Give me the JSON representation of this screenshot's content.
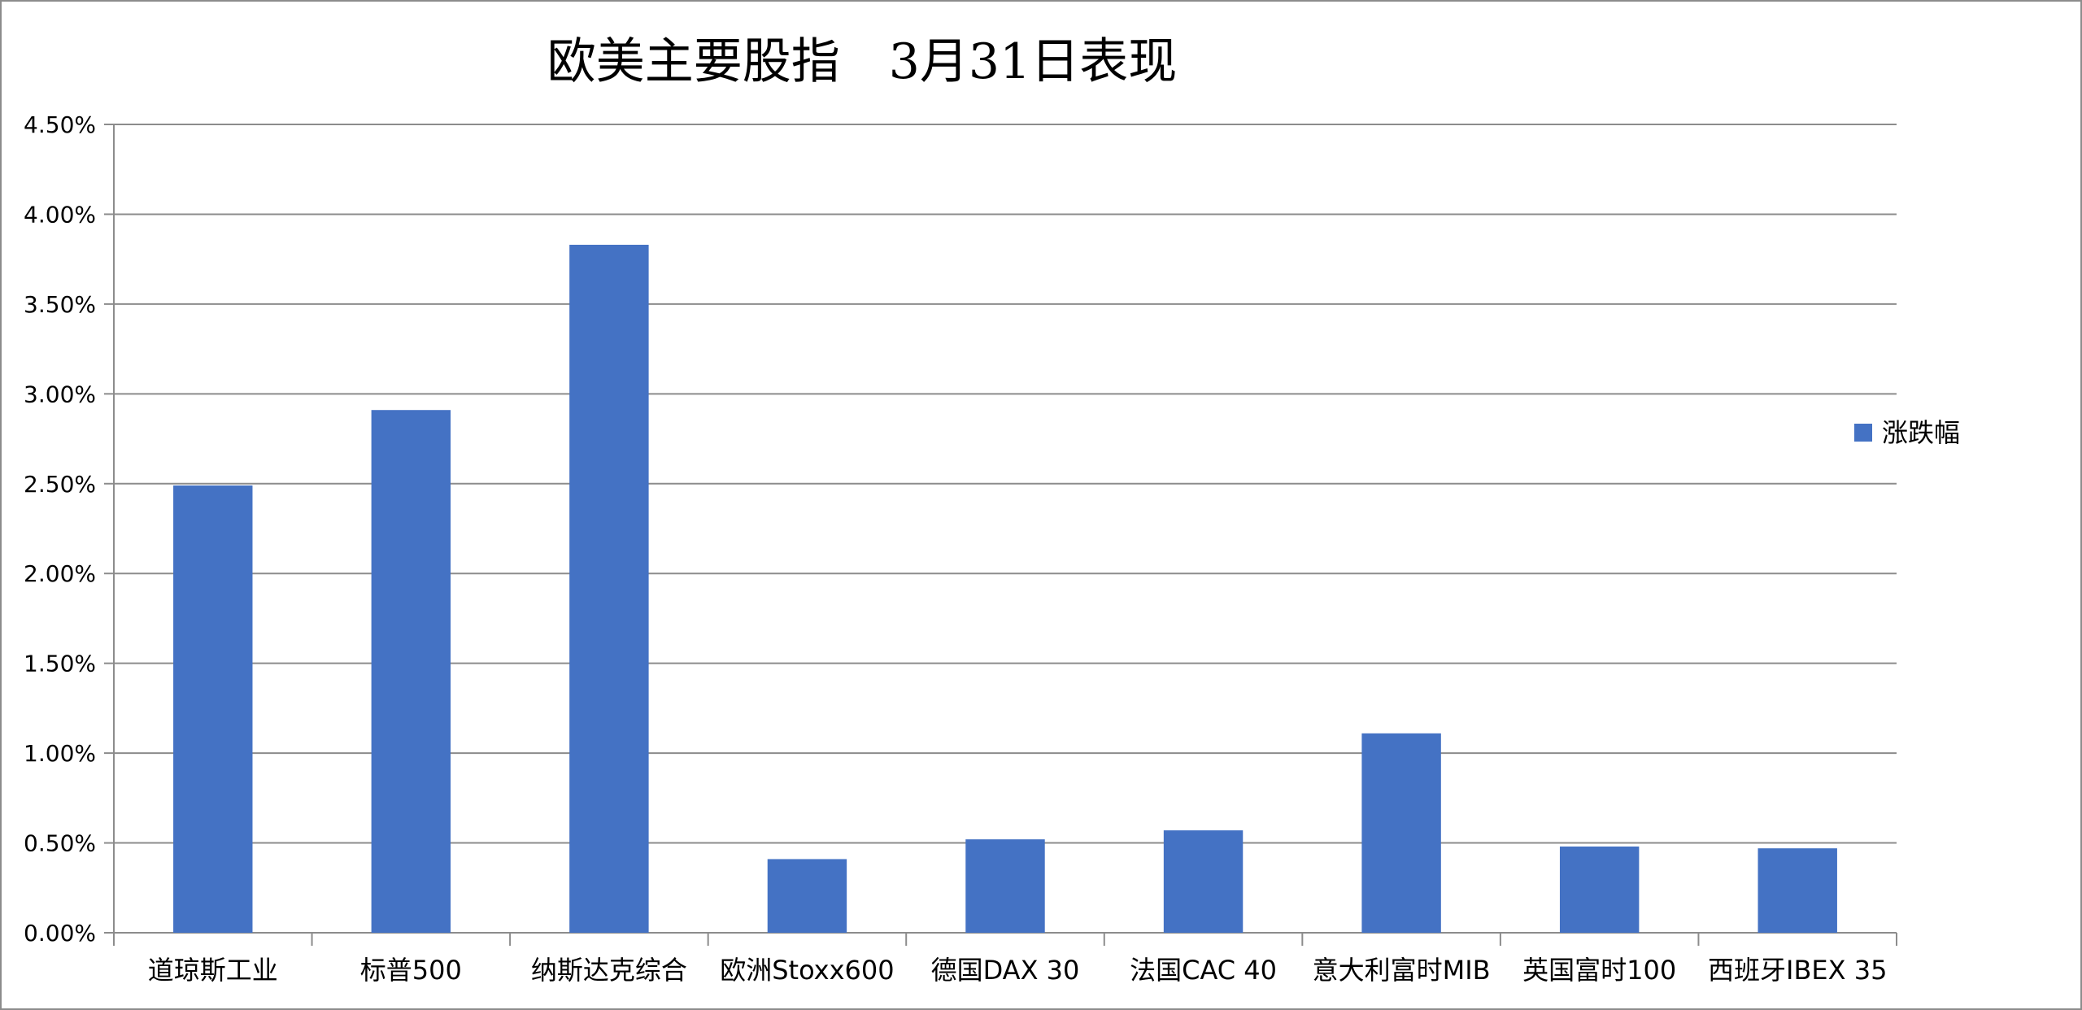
{
  "chart_data": {
    "type": "bar",
    "title": "欧美主要股指　3月31日表现",
    "xlabel": "",
    "ylabel": "",
    "categories": [
      "道琼斯工业",
      "标普500",
      "纳斯达克综合",
      "欧洲Stoxx600",
      "德国DAX 30",
      "法国CAC 40",
      "意大利富时MIB",
      "英国富时100",
      "西班牙IBEX 35"
    ],
    "series": [
      {
        "name": "涨跌幅",
        "values": [
          2.49,
          2.91,
          3.83,
          0.41,
          0.52,
          0.57,
          1.11,
          0.48,
          0.47
        ],
        "color": "#4472C4"
      }
    ],
    "ylim": [
      0,
      4.5
    ],
    "yticks": [
      0,
      0.5,
      1.0,
      1.5,
      2.0,
      2.5,
      3.0,
      3.5,
      4.0,
      4.5
    ],
    "ytick_labels": [
      "0.00%",
      "0.50%",
      "1.00%",
      "1.50%",
      "2.00%",
      "2.50%",
      "3.00%",
      "3.50%",
      "4.00%",
      "4.50%"
    ],
    "grid": true,
    "legend_position": "right"
  }
}
